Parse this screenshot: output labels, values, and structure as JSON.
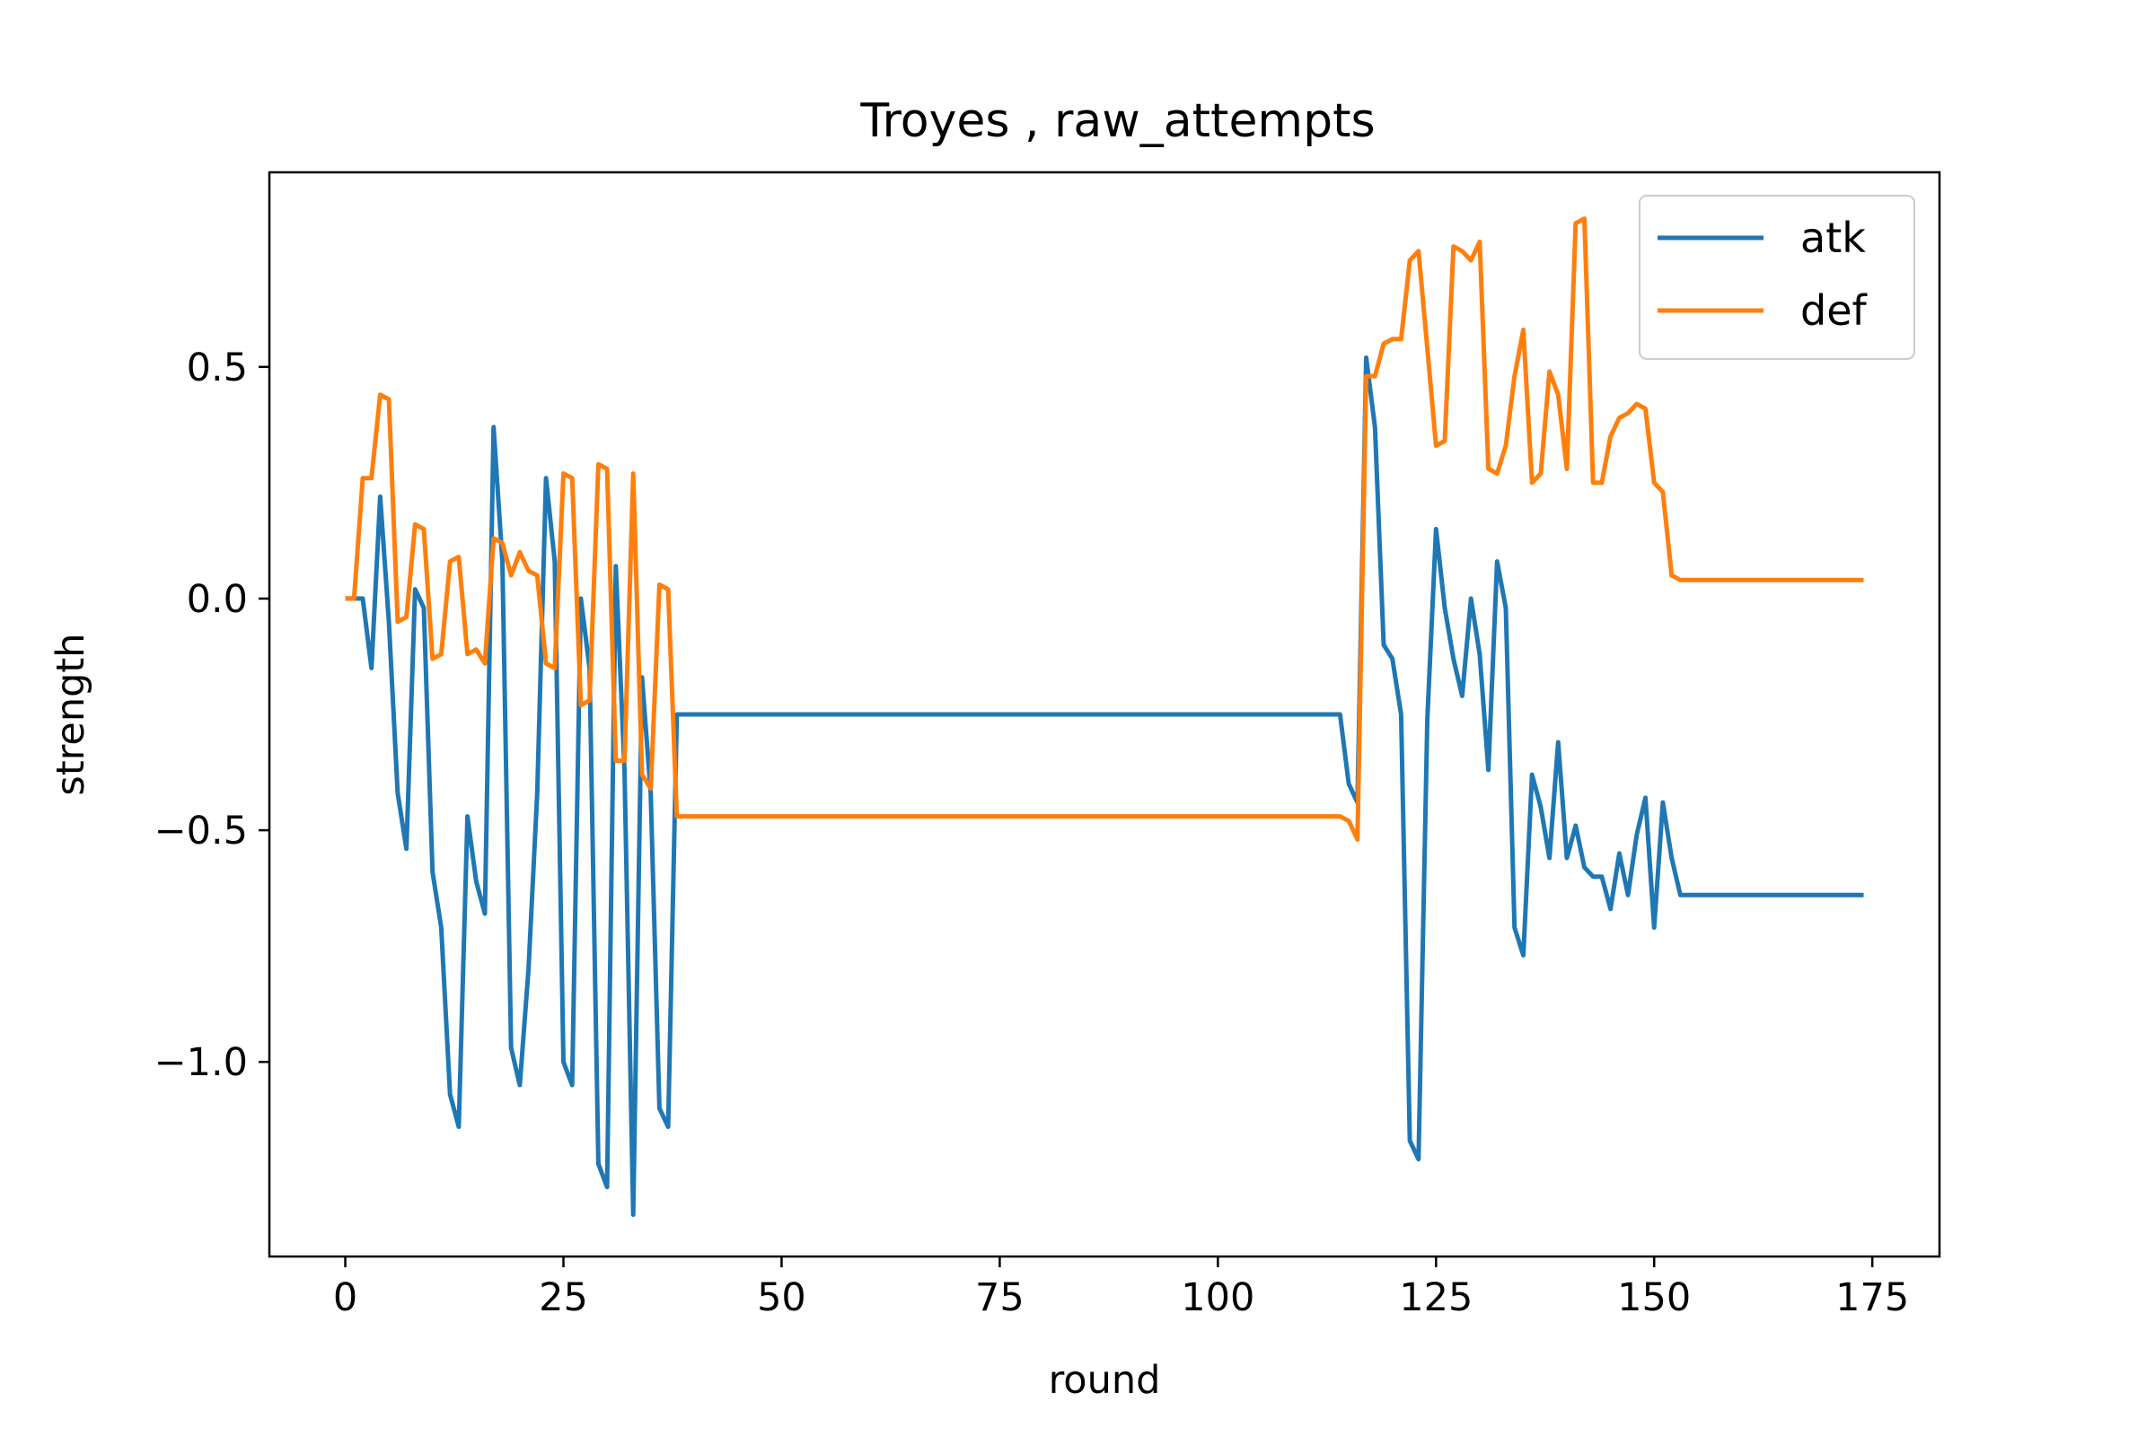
{
  "chart_data": {
    "type": "line",
    "title": "Troyes , raw_attempts",
    "xlabel": "round",
    "ylabel": "strength",
    "xlim": [
      -8.7,
      182.7
    ],
    "ylim": [
      -1.42,
      0.92
    ],
    "xticks": [
      0,
      25,
      50,
      75,
      100,
      125,
      150,
      175
    ],
    "xtick_labels": [
      "0",
      "25",
      "50",
      "75",
      "100",
      "125",
      "150",
      "175"
    ],
    "yticks": [
      0.5,
      0.0,
      -0.5,
      -1.0
    ],
    "ytick_labels": [
      "0.5",
      "0.0",
      "−0.5",
      "−1.0"
    ],
    "grid": false,
    "legend_position": "top-right",
    "series": [
      {
        "name": "atk",
        "color": "#1f77b4",
        "points": [
          [
            0,
            0.0
          ],
          [
            1,
            0.0
          ],
          [
            2,
            0.0
          ],
          [
            3,
            -0.15
          ],
          [
            4,
            0.22
          ],
          [
            5,
            -0.05
          ],
          [
            6,
            -0.42
          ],
          [
            7,
            -0.54
          ],
          [
            8,
            0.02
          ],
          [
            9,
            -0.02
          ],
          [
            10,
            -0.59
          ],
          [
            11,
            -0.71
          ],
          [
            12,
            -1.07
          ],
          [
            13,
            -1.14
          ],
          [
            14,
            -0.47
          ],
          [
            15,
            -0.61
          ],
          [
            16,
            -0.68
          ],
          [
            17,
            0.37
          ],
          [
            18,
            0.08
          ],
          [
            19,
            -0.97
          ],
          [
            20,
            -1.05
          ],
          [
            21,
            -0.8
          ],
          [
            22,
            -0.42
          ],
          [
            23,
            0.26
          ],
          [
            24,
            0.08
          ],
          [
            25,
            -1.0
          ],
          [
            26,
            -1.05
          ],
          [
            27,
            0.0
          ],
          [
            28,
            -0.15
          ],
          [
            29,
            -1.22
          ],
          [
            30,
            -1.27
          ],
          [
            31,
            0.07
          ],
          [
            32,
            -0.37
          ],
          [
            33,
            -1.33
          ],
          [
            34,
            -0.17
          ],
          [
            35,
            -0.42
          ],
          [
            36,
            -1.1
          ],
          [
            37,
            -1.14
          ],
          [
            38,
            -0.25
          ],
          [
            40,
            -0.25
          ],
          [
            60,
            -0.25
          ],
          [
            80,
            -0.25
          ],
          [
            100,
            -0.25
          ],
          [
            114,
            -0.25
          ],
          [
            115,
            -0.4
          ],
          [
            116,
            -0.44
          ],
          [
            117,
            0.52
          ],
          [
            118,
            0.37
          ],
          [
            119,
            -0.1
          ],
          [
            120,
            -0.13
          ],
          [
            121,
            -0.25
          ],
          [
            122,
            -1.17
          ],
          [
            123,
            -1.21
          ],
          [
            124,
            -0.26
          ],
          [
            125,
            0.15
          ],
          [
            126,
            -0.02
          ],
          [
            127,
            -0.13
          ],
          [
            128,
            -0.21
          ],
          [
            129,
            0.0
          ],
          [
            130,
            -0.12
          ],
          [
            131,
            -0.37
          ],
          [
            132,
            0.08
          ],
          [
            133,
            -0.02
          ],
          [
            134,
            -0.71
          ],
          [
            135,
            -0.77
          ],
          [
            136,
            -0.38
          ],
          [
            137,
            -0.45
          ],
          [
            138,
            -0.56
          ],
          [
            139,
            -0.31
          ],
          [
            140,
            -0.56
          ],
          [
            141,
            -0.49
          ],
          [
            142,
            -0.58
          ],
          [
            143,
            -0.6
          ],
          [
            144,
            -0.6
          ],
          [
            145,
            -0.67
          ],
          [
            146,
            -0.55
          ],
          [
            147,
            -0.64
          ],
          [
            148,
            -0.51
          ],
          [
            149,
            -0.43
          ],
          [
            150,
            -0.71
          ],
          [
            151,
            -0.44
          ],
          [
            152,
            -0.56
          ],
          [
            153,
            -0.64
          ],
          [
            160,
            -0.64
          ],
          [
            174,
            -0.64
          ]
        ]
      },
      {
        "name": "def",
        "color": "#ff7f0e",
        "points": [
          [
            0,
            0.0
          ],
          [
            1,
            0.0
          ],
          [
            2,
            0.26
          ],
          [
            3,
            0.26
          ],
          [
            4,
            0.44
          ],
          [
            5,
            0.43
          ],
          [
            6,
            -0.05
          ],
          [
            7,
            -0.04
          ],
          [
            8,
            0.16
          ],
          [
            9,
            0.15
          ],
          [
            10,
            -0.13
          ],
          [
            11,
            -0.12
          ],
          [
            12,
            0.08
          ],
          [
            13,
            0.09
          ],
          [
            14,
            -0.12
          ],
          [
            15,
            -0.11
          ],
          [
            16,
            -0.14
          ],
          [
            17,
            0.13
          ],
          [
            18,
            0.12
          ],
          [
            19,
            0.05
          ],
          [
            20,
            0.1
          ],
          [
            21,
            0.06
          ],
          [
            22,
            0.05
          ],
          [
            23,
            -0.14
          ],
          [
            24,
            -0.15
          ],
          [
            25,
            0.27
          ],
          [
            26,
            0.26
          ],
          [
            27,
            -0.23
          ],
          [
            28,
            -0.22
          ],
          [
            29,
            0.29
          ],
          [
            30,
            0.28
          ],
          [
            31,
            -0.35
          ],
          [
            32,
            -0.35
          ],
          [
            33,
            0.27
          ],
          [
            34,
            -0.38
          ],
          [
            35,
            -0.41
          ],
          [
            36,
            0.03
          ],
          [
            37,
            0.02
          ],
          [
            38,
            -0.47
          ],
          [
            60,
            -0.47
          ],
          [
            80,
            -0.47
          ],
          [
            100,
            -0.47
          ],
          [
            114,
            -0.47
          ],
          [
            115,
            -0.48
          ],
          [
            116,
            -0.52
          ],
          [
            117,
            0.48
          ],
          [
            118,
            0.48
          ],
          [
            119,
            0.55
          ],
          [
            120,
            0.56
          ],
          [
            121,
            0.56
          ],
          [
            122,
            0.73
          ],
          [
            123,
            0.75
          ],
          [
            124,
            0.54
          ],
          [
            125,
            0.33
          ],
          [
            126,
            0.34
          ],
          [
            127,
            0.76
          ],
          [
            128,
            0.75
          ],
          [
            129,
            0.73
          ],
          [
            130,
            0.77
          ],
          [
            131,
            0.28
          ],
          [
            132,
            0.27
          ],
          [
            133,
            0.33
          ],
          [
            134,
            0.48
          ],
          [
            135,
            0.58
          ],
          [
            136,
            0.25
          ],
          [
            137,
            0.27
          ],
          [
            138,
            0.49
          ],
          [
            139,
            0.44
          ],
          [
            140,
            0.28
          ],
          [
            141,
            0.81
          ],
          [
            142,
            0.82
          ],
          [
            143,
            0.25
          ],
          [
            144,
            0.25
          ],
          [
            145,
            0.35
          ],
          [
            146,
            0.39
          ],
          [
            147,
            0.4
          ],
          [
            148,
            0.42
          ],
          [
            149,
            0.41
          ],
          [
            150,
            0.25
          ],
          [
            151,
            0.23
          ],
          [
            152,
            0.05
          ],
          [
            153,
            0.04
          ],
          [
            160,
            0.04
          ],
          [
            174,
            0.04
          ]
        ]
      }
    ]
  }
}
